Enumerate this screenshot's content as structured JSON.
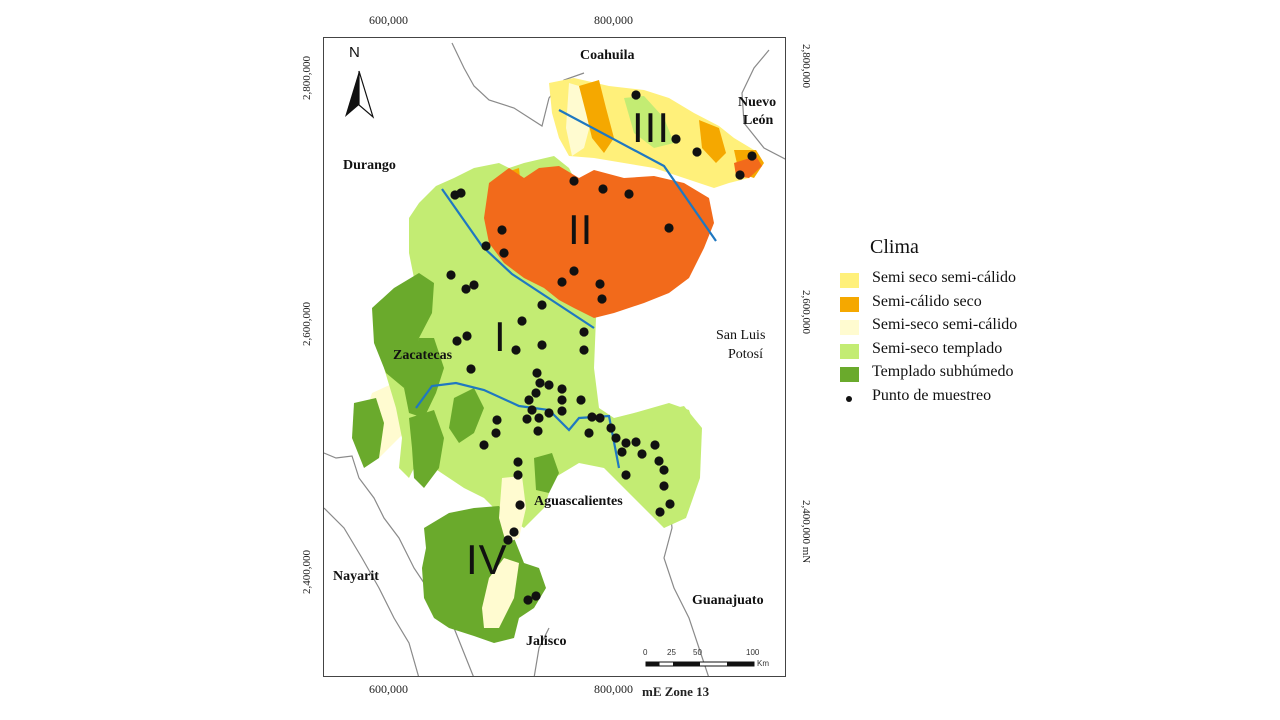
{
  "map": {
    "north_label": "N",
    "coord_labels": {
      "top": [
        "600,000",
        "800,000"
      ],
      "bottom": [
        "600,000",
        "800,000"
      ],
      "left": [
        "2,800,000",
        "2,600,000",
        "2,400,000"
      ],
      "right": [
        "2,800,000",
        "2,600,000",
        "2,400,000 mN"
      ]
    },
    "bottom_axis_label": "mE Zone 13",
    "states": {
      "coahuila": "Coahuila",
      "nuevo_leon_1": "Nuevo",
      "nuevo_leon_2": "León",
      "durango": "Durango",
      "zacatecas": "Zacatecas",
      "slp_1": "San Luis",
      "slp_2": "Potosí",
      "aguascalientes": "Aguascalientes",
      "nayarit": "Nayarit",
      "jalisco": "Jalisco",
      "guanajuato": "Guanajuato"
    },
    "zones": [
      "I",
      "II",
      "III",
      "IV"
    ],
    "scale": {
      "ticks": [
        "0",
        "25",
        "50",
        "100"
      ],
      "unit": "Km"
    },
    "colors": {
      "semi_seco_semi_calido": "#fff07a",
      "semi_calido_seco": "#f5a800",
      "semi_seco_semi_calido_pale": "#fffbd0",
      "semi_seco_templado": "#c3ec73",
      "templado_subhumedo": "#6aaa2c",
      "orange_zone": "#f26a1b",
      "boundary_lines": "#1f78c1",
      "sample_points": "#111111"
    }
  },
  "legend": {
    "title": "Clima",
    "items": [
      {
        "label": "Semi seco semi-cálido",
        "color": "#fff07a"
      },
      {
        "label": "Semi-cálido  seco",
        "color": "#f5a800"
      },
      {
        "label": "Semi-seco semi-cálido",
        "color": "#fffbd0"
      },
      {
        "label": "Semi-seco templado",
        "color": "#c3ec73"
      },
      {
        "label": "Templado subhúmedo",
        "color": "#6aaa2c"
      }
    ],
    "point_label": "Punto de muestreo"
  }
}
